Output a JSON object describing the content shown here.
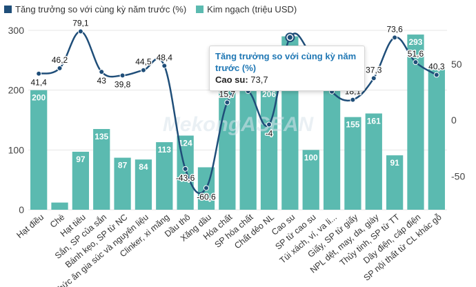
{
  "chart_data": {
    "type": "bar",
    "categories": [
      "Hạt điều",
      "Chè",
      "Hạt tiêu",
      "Sắn, SP của sắn",
      "Bánh kẹo, SP từ NC",
      "Thức ăn gia súc và nguyên liệu",
      "Clinker, xi măng",
      "Dầu thô",
      "Xăng dầu",
      "Hóa chất",
      "SP hóa chất",
      "Chất dẻo NL",
      "Cao su",
      "SP từ cao su",
      "Túi xách, ví, va li...",
      "Giấy, SP từ giấy",
      "NPL dệt, may, da, giày",
      "Thủy tinh, SP từ TT",
      "Dây điện, cáp điện",
      "SP nội thất từ CL khác gỗ"
    ],
    "series": [
      {
        "name": "Kim ngạch (triệu USD)",
        "axis": "left",
        "color": "#5bbab0",
        "values": [
          200,
          12,
          97,
          135,
          87,
          84,
          113,
          124,
          71,
          205,
          221,
          206,
          290,
          100,
          200,
          155,
          161,
          91,
          293,
          235
        ],
        "labels": [
          "200",
          "",
          "97",
          "135",
          "87",
          "84",
          "113",
          "124",
          "",
          "",
          "",
          "206",
          "",
          "100",
          "",
          "155",
          "161",
          "91",
          "293",
          ""
        ]
      },
      {
        "name": "Tăng trưởng so với cùng kỳ năm trước (%)",
        "axis": "right",
        "color": "#1f4e79",
        "values": [
          41.4,
          46.2,
          79.1,
          43,
          39.8,
          44.5,
          48.4,
          -43.6,
          -60.6,
          15.7,
          25.8,
          -4,
          73.7,
          58,
          25.4,
          18.1,
          37.3,
          73.6,
          51.6,
          40.3
        ],
        "labels": [
          "41,4",
          "46,2",
          "79,1",
          "43",
          "39,8",
          "44,5",
          "48,4",
          "-43,6",
          "-60,6",
          "15,7",
          "25,8",
          "-4",
          "",
          "",
          "25,4",
          "18,1",
          "37,3",
          "73,6",
          "51,6",
          "40,3"
        ]
      }
    ],
    "ylim_left": [
      0,
      300
    ],
    "left_ticks": [
      0,
      100,
      200,
      300
    ],
    "ylim_right": [
      -80,
      80
    ],
    "right_ticks": [
      -50,
      0,
      50
    ],
    "highlight_index": 12
  },
  "legend": {
    "growth_label": "Tăng trưởng so với cùng kỳ năm trước (%)",
    "value_label": "Kim ngạch (triệu USD)",
    "growth_color": "#1f4e79",
    "value_color": "#5bbab0"
  },
  "tooltip": {
    "title": "Tăng trưởng so với cùng kỳ năm trước (%)",
    "label": "Cao su:",
    "value": "73,7"
  },
  "watermark": "MekongASEAN"
}
